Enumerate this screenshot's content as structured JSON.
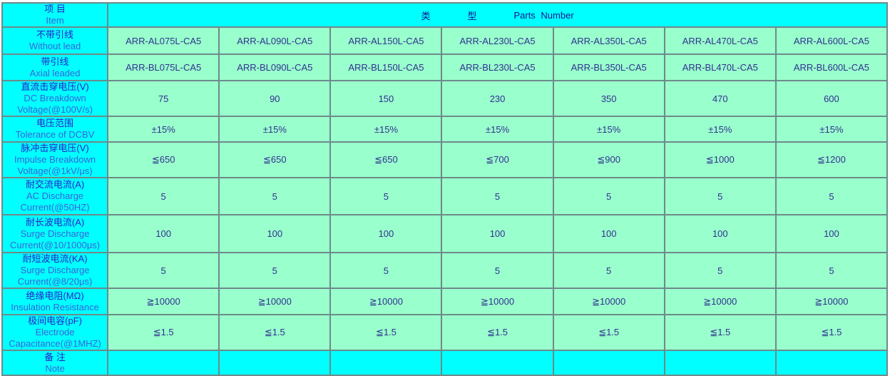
{
  "colors": {
    "header_bg": "#00ffff",
    "value_bg": "#99ffcc",
    "border": "#6d8a8a",
    "chinese_text": "#2a22c8",
    "english_text": "#3a64d8",
    "value_text": "#313191"
  },
  "header": {
    "item_cn": "项 目",
    "item_en": "Item",
    "type_cn_1": "类",
    "type_cn_2": "型",
    "parts_label": "Parts Number"
  },
  "rows": [
    {
      "key": "without-lead",
      "label_cn": "不带引线",
      "label_en_lines": [
        "Without lead"
      ],
      "values": [
        "ARR-AL075L-CA5",
        "ARR-AL090L-CA5",
        "ARR-AL150L-CA5",
        "ARR-AL230L-CA5",
        "ARR-AL350L-CA5",
        "ARR-AL470L-CA5",
        "ARR-AL600L-CA5"
      ]
    },
    {
      "key": "axial-leaded",
      "label_cn": "带引线",
      "label_en_lines": [
        "Axial leaded"
      ],
      "values": [
        "ARR-BL075L-CA5",
        "ARR-BL090L-CA5",
        "ARR-BL150L-CA5",
        "ARR-BL230L-CA5",
        "ARR-BL350L-CA5",
        "ARR-BL470L-CA5",
        "ARR-BL600L-CA5"
      ]
    },
    {
      "key": "dc-breakdown-voltage",
      "label_cn": "直流击穿电压(V)",
      "label_en_lines": [
        "DC Breakdown",
        "Voltage(@100V/s)"
      ],
      "values": [
        "75",
        "90",
        "150",
        "230",
        "350",
        "470",
        "600"
      ]
    },
    {
      "key": "tolerance-of-dcbv",
      "label_cn": "电压范围",
      "label_en_lines": [
        "Tolerance of DCBV"
      ],
      "values": [
        "±15%",
        "±15%",
        "±15%",
        "±15%",
        "±15%",
        "±15%",
        "±15%"
      ]
    },
    {
      "key": "impulse-breakdown-voltage",
      "label_cn": "脉冲击穿电压(V)",
      "label_en_lines": [
        "Impulse Breakdown",
        "Voltage(@1kV/μs)"
      ],
      "values": [
        "≦650",
        "≦650",
        "≦650",
        "≦700",
        "≦900",
        "≦1000",
        "≦1200"
      ]
    },
    {
      "key": "ac-discharge-current",
      "label_cn": "耐交流电流(A)",
      "label_en_lines": [
        "AC Discharge",
        "Current(@50HZ)"
      ],
      "values": [
        "5",
        "5",
        "5",
        "5",
        "5",
        "5",
        "5"
      ]
    },
    {
      "key": "surge-discharge-current-long-wave",
      "label_cn": "耐长波电流(A)",
      "label_en_lines": [
        "Surge Discharge",
        "Current(@10/1000μs)"
      ],
      "values": [
        "100",
        "100",
        "100",
        "100",
        "100",
        "100",
        "100"
      ]
    },
    {
      "key": "surge-discharge-current-short-wave",
      "label_cn": "耐短波电流(KA)",
      "label_en_lines": [
        "Surge Discharge",
        "Current(@8/20μs)"
      ],
      "values": [
        "5",
        "5",
        "5",
        "5",
        "5",
        "5",
        "5"
      ]
    },
    {
      "key": "insulation-resistance",
      "label_cn": "绝缘电阻(MΩ)",
      "label_en_lines": [
        "Insulation Resistance"
      ],
      "values": [
        "≧10000",
        "≧10000",
        "≧10000",
        "≧10000",
        "≧10000",
        "≧10000",
        "≧10000"
      ]
    },
    {
      "key": "electrode-capacitance",
      "label_cn": "极间电容(pF)",
      "label_en_lines": [
        "Electrode",
        "Capacitance(@1MHZ)"
      ],
      "values": [
        "≦1.5",
        "≦1.5",
        "≦1.5",
        "≦1.5",
        "≦1.5",
        "≦1.5",
        "≦1.5"
      ]
    },
    {
      "key": "note",
      "label_cn": "备 注",
      "label_en_lines": [
        "Note"
      ],
      "values": [
        "",
        "",
        "",
        "",
        "",
        "",
        ""
      ]
    }
  ]
}
